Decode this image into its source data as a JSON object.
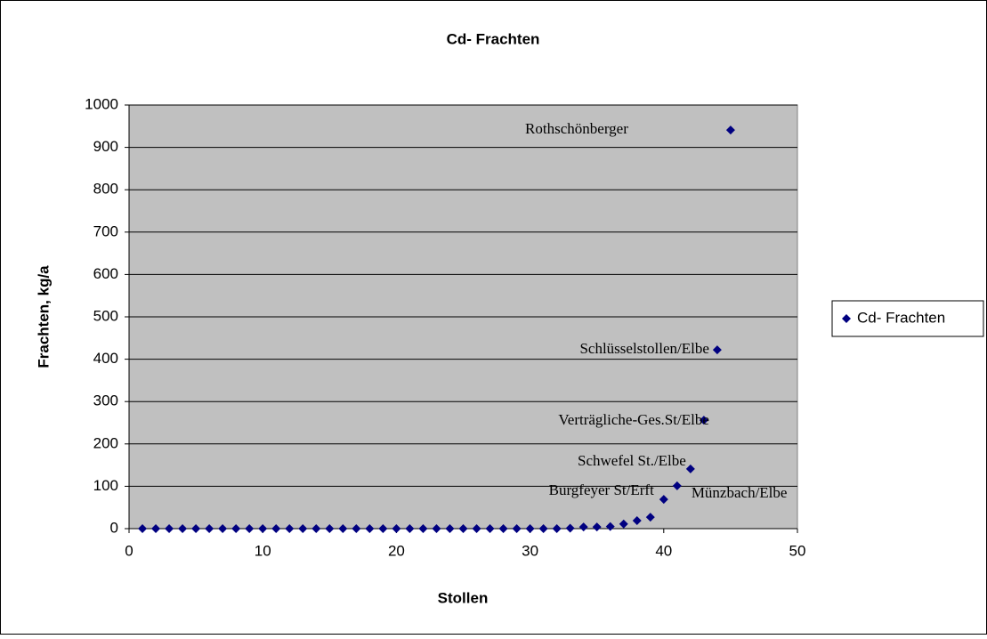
{
  "chart_data": {
    "type": "scatter",
    "title": "Cd- Frachten",
    "x_label": "Stollen",
    "y_label": "Frachten, kg/a",
    "series": [
      {
        "name": "Cd- Frachten",
        "color": "#000080",
        "x": [
          1,
          2,
          3,
          4,
          5,
          6,
          7,
          8,
          9,
          10,
          11,
          12,
          13,
          14,
          15,
          16,
          17,
          18,
          19,
          20,
          21,
          22,
          23,
          24,
          25,
          26,
          27,
          28,
          29,
          30,
          31,
          32,
          33,
          34,
          35,
          36,
          37,
          38,
          39,
          40,
          41,
          42,
          43,
          44,
          45
        ],
        "values": [
          0,
          0,
          0,
          0,
          0,
          0,
          0,
          0,
          0,
          0,
          0,
          0,
          0,
          0,
          0,
          0,
          0,
          0,
          0,
          0,
          0,
          0,
          0,
          0,
          0,
          0,
          0,
          0,
          0,
          0,
          0,
          0,
          1,
          4,
          4,
          5,
          11,
          19,
          27,
          69,
          101,
          141,
          256,
          422,
          941
        ]
      }
    ],
    "annotations": [
      {
        "text": "Rothschönberger",
        "x": 45
      },
      {
        "text": "Schlüsselstollen/Elbe",
        "x": 44
      },
      {
        "text": "Verträgliche-Ges.St/Elbe",
        "x": 43
      },
      {
        "text": "Schwefel St./Elbe",
        "x": 42
      },
      {
        "text": "Münzbach/Elbe",
        "x": 41
      },
      {
        "text": "Burgfeyer St/Erft",
        "x": 40
      }
    ],
    "xlim": [
      0,
      50
    ],
    "xticks": [
      0,
      10,
      20,
      30,
      40,
      50
    ],
    "ylim": [
      0,
      1000
    ],
    "yticks": [
      0,
      100,
      200,
      300,
      400,
      500,
      600,
      700,
      800,
      900,
      1000
    ],
    "grid": true,
    "legend": "right"
  }
}
